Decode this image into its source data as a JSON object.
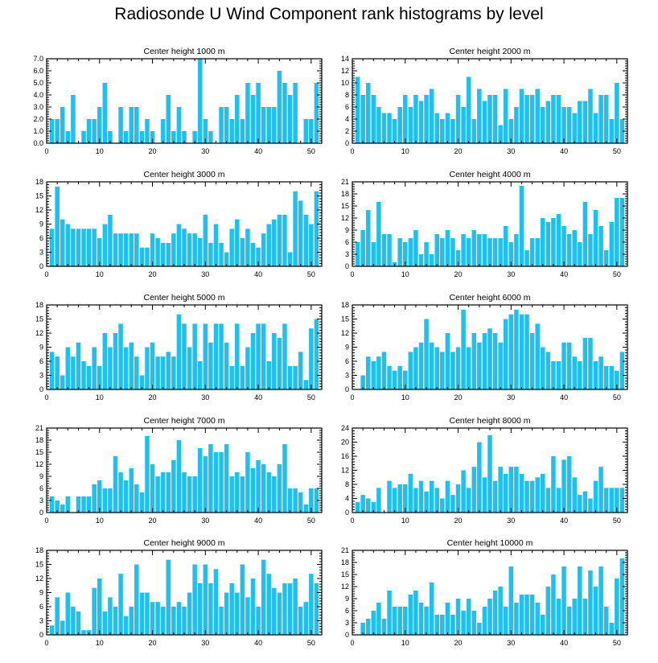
{
  "figure": {
    "title": "Radiosonde U Wind Component rank histograms by level",
    "bar_color": "#1ec0f0"
  },
  "chart_data": [
    {
      "type": "bar",
      "title": "Center height 1000 m",
      "xlim": [
        0,
        52
      ],
      "ylim": [
        0,
        7
      ],
      "xticks": [
        0,
        10,
        20,
        30,
        40,
        50
      ],
      "yticks": [
        0,
        1,
        2,
        3,
        4,
        5,
        6,
        7
      ],
      "ytick_labels": [
        "0.0",
        "1.0",
        "2.0",
        "3.0",
        "4.0",
        "5.0",
        "6.0",
        "7.0"
      ],
      "x": [
        1,
        2,
        3,
        4,
        5,
        6,
        7,
        8,
        9,
        10,
        11,
        12,
        13,
        14,
        15,
        16,
        17,
        18,
        19,
        20,
        21,
        22,
        23,
        24,
        25,
        26,
        27,
        28,
        29,
        30,
        31,
        32,
        33,
        34,
        35,
        36,
        37,
        38,
        39,
        40,
        41,
        42,
        43,
        44,
        45,
        46,
        47,
        48,
        49,
        50,
        51
      ],
      "values": [
        2,
        2,
        3,
        1,
        4,
        0,
        1,
        2,
        2,
        3,
        5,
        1,
        0,
        3,
        1,
        3,
        3,
        1,
        2,
        1,
        0,
        2,
        4,
        1,
        3,
        1,
        0,
        1,
        7,
        2,
        1,
        0,
        3,
        3,
        2,
        4,
        2,
        5,
        4,
        5,
        3,
        3,
        3,
        6,
        5,
        4,
        5,
        0,
        2,
        2,
        5
      ]
    },
    {
      "type": "bar",
      "title": "Center height 2000 m",
      "xlim": [
        0,
        52
      ],
      "ylim": [
        0,
        14
      ],
      "xticks": [
        0,
        10,
        20,
        30,
        40,
        50
      ],
      "yticks": [
        0,
        2,
        4,
        6,
        8,
        10,
        12,
        14
      ],
      "ytick_labels": [
        "0",
        "2",
        "4",
        "6",
        "8",
        "10",
        "12",
        "14"
      ],
      "x": [
        1,
        2,
        3,
        4,
        5,
        6,
        7,
        8,
        9,
        10,
        11,
        12,
        13,
        14,
        15,
        16,
        17,
        18,
        19,
        20,
        21,
        22,
        23,
        24,
        25,
        26,
        27,
        28,
        29,
        30,
        31,
        32,
        33,
        34,
        35,
        36,
        37,
        38,
        39,
        40,
        41,
        42,
        43,
        44,
        45,
        46,
        47,
        48,
        49,
        50,
        51
      ],
      "values": [
        11,
        8,
        10,
        8,
        6,
        5,
        5,
        4,
        6,
        8,
        6,
        8,
        7,
        8,
        9,
        5,
        4,
        5,
        4,
        8,
        6,
        11,
        4,
        9,
        7,
        8,
        8,
        3,
        9,
        4,
        6,
        9,
        8,
        8,
        9,
        6,
        7,
        8,
        8,
        6,
        6,
        5,
        7,
        7,
        9,
        5,
        8,
        8,
        4,
        10,
        4
      ]
    },
    {
      "type": "bar",
      "title": "Center height 3000 m",
      "xlim": [
        0,
        52
      ],
      "ylim": [
        0,
        18
      ],
      "xticks": [
        0,
        10,
        20,
        30,
        40,
        50
      ],
      "yticks": [
        0,
        3,
        6,
        9,
        12,
        15,
        18
      ],
      "ytick_labels": [
        "0",
        "3",
        "6",
        "9",
        "12",
        "15",
        "18"
      ],
      "x": [
        1,
        2,
        3,
        4,
        5,
        6,
        7,
        8,
        9,
        10,
        11,
        12,
        13,
        14,
        15,
        16,
        17,
        18,
        19,
        20,
        21,
        22,
        23,
        24,
        25,
        26,
        27,
        28,
        29,
        30,
        31,
        32,
        33,
        34,
        35,
        36,
        37,
        38,
        39,
        40,
        41,
        42,
        43,
        44,
        45,
        46,
        47,
        48,
        49,
        50,
        51
      ],
      "values": [
        8,
        17,
        10,
        9,
        8,
        8,
        8,
        8,
        8,
        6,
        9,
        11,
        7,
        7,
        7,
        7,
        7,
        4,
        4,
        7,
        6,
        5,
        5,
        7,
        9,
        8,
        7,
        7,
        6,
        11,
        5,
        9,
        5,
        3,
        8,
        10,
        6,
        8,
        5,
        4,
        7,
        9,
        10,
        11,
        11,
        3,
        16,
        14,
        11,
        9,
        16
      ]
    },
    {
      "type": "bar",
      "title": "Center height 4000 m",
      "xlim": [
        0,
        52
      ],
      "ylim": [
        0,
        21
      ],
      "xticks": [
        0,
        10,
        20,
        30,
        40,
        50
      ],
      "yticks": [
        0,
        3,
        6,
        9,
        12,
        15,
        18,
        21
      ],
      "ytick_labels": [
        "0",
        "3",
        "6",
        "9",
        "12",
        "15",
        "18",
        "21"
      ],
      "x": [
        1,
        2,
        3,
        4,
        5,
        6,
        7,
        8,
        9,
        10,
        11,
        12,
        13,
        14,
        15,
        16,
        17,
        18,
        19,
        20,
        21,
        22,
        23,
        24,
        25,
        26,
        27,
        28,
        29,
        30,
        31,
        32,
        33,
        34,
        35,
        36,
        37,
        38,
        39,
        40,
        41,
        42,
        43,
        44,
        45,
        46,
        47,
        48,
        49,
        50,
        51
      ],
      "values": [
        6,
        9,
        14,
        6,
        16,
        8,
        8,
        1,
        7,
        6,
        7,
        9,
        3,
        6,
        3,
        8,
        7,
        9,
        7,
        4,
        8,
        7,
        9,
        8,
        8,
        7,
        7,
        7,
        10,
        6,
        8,
        20,
        4,
        7,
        7,
        12,
        11,
        12,
        13,
        10,
        8,
        9,
        6,
        16,
        8,
        14,
        10,
        4,
        11,
        17,
        17
      ]
    },
    {
      "type": "bar",
      "title": "Center height 5000 m",
      "xlim": [
        0,
        52
      ],
      "ylim": [
        0,
        18
      ],
      "xticks": [
        0,
        10,
        20,
        30,
        40,
        50
      ],
      "yticks": [
        0,
        3,
        6,
        9,
        12,
        15,
        18
      ],
      "ytick_labels": [
        "0",
        "3",
        "6",
        "9",
        "12",
        "15",
        "18"
      ],
      "x": [
        1,
        2,
        3,
        4,
        5,
        6,
        7,
        8,
        9,
        10,
        11,
        12,
        13,
        14,
        15,
        16,
        17,
        18,
        19,
        20,
        21,
        22,
        23,
        24,
        25,
        26,
        27,
        28,
        29,
        30,
        31,
        32,
        33,
        34,
        35,
        36,
        37,
        38,
        39,
        40,
        41,
        42,
        43,
        44,
        45,
        46,
        47,
        48,
        49,
        50,
        51
      ],
      "values": [
        8,
        7,
        3,
        9,
        7,
        10,
        6,
        5,
        9,
        5,
        12,
        9,
        12,
        14,
        9,
        10,
        7,
        3,
        9,
        10,
        7,
        7,
        8,
        7,
        16,
        14,
        9,
        14,
        6,
        14,
        10,
        14,
        14,
        10,
        5,
        14,
        5,
        9,
        12,
        14,
        14,
        6,
        12,
        11,
        14,
        5,
        5,
        8,
        2,
        13,
        15
      ]
    },
    {
      "type": "bar",
      "title": "Center height 6000 m",
      "xlim": [
        0,
        52
      ],
      "ylim": [
        0,
        18
      ],
      "xticks": [
        0,
        10,
        20,
        30,
        40,
        50
      ],
      "yticks": [
        0,
        3,
        6,
        9,
        12,
        15,
        18
      ],
      "ytick_labels": [
        "0",
        "3",
        "6",
        "9",
        "12",
        "15",
        "18"
      ],
      "x": [
        1,
        2,
        3,
        4,
        5,
        6,
        7,
        8,
        9,
        10,
        11,
        12,
        13,
        14,
        15,
        16,
        17,
        18,
        19,
        20,
        21,
        22,
        23,
        24,
        25,
        26,
        27,
        28,
        29,
        30,
        31,
        32,
        33,
        34,
        35,
        36,
        37,
        38,
        39,
        40,
        41,
        42,
        43,
        44,
        45,
        46,
        47,
        48,
        49,
        50,
        51
      ],
      "values": [
        0,
        3,
        7,
        6,
        7,
        8,
        5,
        4,
        5,
        4,
        8,
        9,
        10,
        15,
        10,
        9,
        8,
        12,
        8,
        9,
        17,
        9,
        12,
        10,
        12,
        13,
        12,
        10,
        15,
        16,
        17,
        16,
        16,
        12,
        14,
        9,
        8,
        6,
        6,
        10,
        10,
        7,
        6,
        11,
        11,
        6,
        7,
        5,
        5,
        4,
        8
      ]
    },
    {
      "type": "bar",
      "title": "Center height 7000 m",
      "xlim": [
        0,
        52
      ],
      "ylim": [
        0,
        21
      ],
      "xticks": [
        0,
        10,
        20,
        30,
        40,
        50
      ],
      "yticks": [
        0,
        3,
        6,
        9,
        12,
        15,
        18,
        21
      ],
      "ytick_labels": [
        "0",
        "3",
        "6",
        "9",
        "12",
        "15",
        "18",
        "21"
      ],
      "x": [
        1,
        2,
        3,
        4,
        5,
        6,
        7,
        8,
        9,
        10,
        11,
        12,
        13,
        14,
        15,
        16,
        17,
        18,
        19,
        20,
        21,
        22,
        23,
        24,
        25,
        26,
        27,
        28,
        29,
        30,
        31,
        32,
        33,
        34,
        35,
        36,
        37,
        38,
        39,
        40,
        41,
        42,
        43,
        44,
        45,
        46,
        47,
        48,
        49,
        50,
        51
      ],
      "values": [
        4,
        3,
        2,
        4,
        0,
        4,
        4,
        4,
        7,
        8,
        6,
        6,
        14,
        10,
        8,
        11,
        7,
        5,
        19,
        12,
        9,
        10,
        10,
        13,
        18,
        10,
        9,
        9,
        16,
        14,
        17,
        15,
        15,
        17,
        9,
        10,
        9,
        15,
        11,
        13,
        12,
        10,
        9,
        12,
        17,
        6,
        6,
        5,
        2,
        6,
        6
      ]
    },
    {
      "type": "bar",
      "title": "Center height 8000 m",
      "xlim": [
        0,
        52
      ],
      "ylim": [
        0,
        24
      ],
      "xticks": [
        0,
        10,
        20,
        30,
        40,
        50
      ],
      "yticks": [
        0,
        4,
        8,
        12,
        16,
        20,
        24
      ],
      "ytick_labels": [
        "0",
        "4",
        "8",
        "12",
        "16",
        "20",
        "24"
      ],
      "x": [
        1,
        2,
        3,
        4,
        5,
        6,
        7,
        8,
        9,
        10,
        11,
        12,
        13,
        14,
        15,
        16,
        17,
        18,
        19,
        20,
        21,
        22,
        23,
        24,
        25,
        26,
        27,
        28,
        29,
        30,
        31,
        32,
        33,
        34,
        35,
        36,
        37,
        38,
        39,
        40,
        41,
        42,
        43,
        44,
        45,
        46,
        47,
        48,
        49,
        50,
        51
      ],
      "values": [
        3,
        5,
        4,
        3,
        7,
        0,
        9,
        7,
        8,
        8,
        11,
        7,
        9,
        6,
        9,
        7,
        4,
        9,
        5,
        8,
        12,
        7,
        13,
        20,
        10,
        22,
        9,
        13,
        11,
        13,
        13,
        11,
        9,
        9,
        10,
        11,
        7,
        16,
        7,
        15,
        16,
        10,
        5,
        6,
        4,
        9,
        13,
        7,
        7,
        7,
        7
      ]
    },
    {
      "type": "bar",
      "title": "Center height 9000 m",
      "xlim": [
        0,
        52
      ],
      "ylim": [
        0,
        18
      ],
      "xticks": [
        0,
        10,
        20,
        30,
        40,
        50
      ],
      "yticks": [
        0,
        3,
        6,
        9,
        12,
        15,
        18
      ],
      "ytick_labels": [
        "0",
        "3",
        "6",
        "9",
        "12",
        "15",
        "18"
      ],
      "x": [
        1,
        2,
        3,
        4,
        5,
        6,
        7,
        8,
        9,
        10,
        11,
        12,
        13,
        14,
        15,
        16,
        17,
        18,
        19,
        20,
        21,
        22,
        23,
        24,
        25,
        26,
        27,
        28,
        29,
        30,
        31,
        32,
        33,
        34,
        35,
        36,
        37,
        38,
        39,
        40,
        41,
        42,
        43,
        44,
        45,
        46,
        47,
        48,
        49,
        50,
        51
      ],
      "values": [
        2,
        8,
        3,
        9,
        6,
        5,
        1,
        1,
        10,
        12,
        5,
        8,
        6,
        13,
        4,
        6,
        15,
        9,
        9,
        7,
        7,
        6,
        16,
        6,
        7,
        6,
        9,
        15,
        11,
        15,
        11,
        14,
        6,
        9,
        11,
        9,
        15,
        8,
        12,
        6,
        16,
        13,
        10,
        9,
        11,
        11,
        12,
        6,
        7,
        13,
        11
      ]
    },
    {
      "type": "bar",
      "title": "Center height 10000 m",
      "xlim": [
        0,
        52
      ],
      "ylim": [
        0,
        21
      ],
      "xticks": [
        0,
        10,
        20,
        30,
        40,
        50
      ],
      "yticks": [
        0,
        3,
        6,
        9,
        12,
        15,
        18,
        21
      ],
      "ytick_labels": [
        "0",
        "3",
        "6",
        "9",
        "12",
        "15",
        "18",
        "21"
      ],
      "x": [
        1,
        2,
        3,
        4,
        5,
        6,
        7,
        8,
        9,
        10,
        11,
        12,
        13,
        14,
        15,
        16,
        17,
        18,
        19,
        20,
        21,
        22,
        23,
        24,
        25,
        26,
        27,
        28,
        29,
        30,
        31,
        32,
        33,
        34,
        35,
        36,
        37,
        38,
        39,
        40,
        41,
        42,
        43,
        44,
        45,
        46,
        47,
        48,
        49,
        50,
        51
      ],
      "values": [
        0,
        3,
        4,
        6,
        8,
        4,
        11,
        7,
        7,
        7,
        10,
        11,
        8,
        7,
        13,
        5,
        5,
        8,
        5,
        9,
        6,
        9,
        6,
        3,
        7,
        9,
        11,
        12,
        7,
        17,
        8,
        10,
        10,
        10,
        8,
        5,
        12,
        15,
        9,
        17,
        7,
        9,
        17,
        9,
        16,
        12,
        17,
        7,
        3,
        14,
        19
      ]
    }
  ]
}
